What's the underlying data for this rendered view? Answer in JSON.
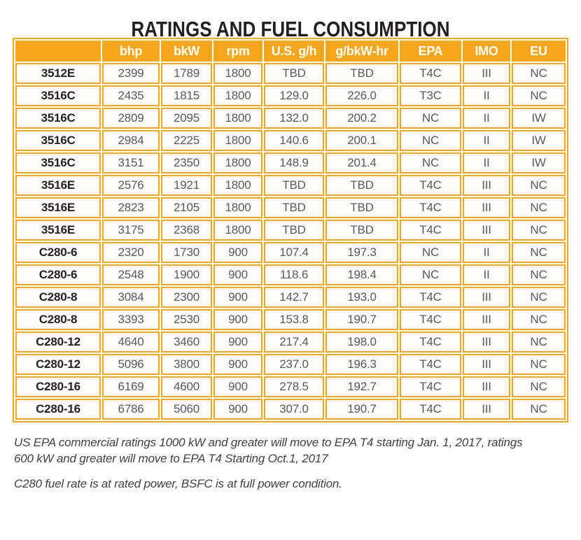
{
  "title": "RATINGS AND FUEL CONSUMPTION",
  "colors": {
    "amber": "#F4A71D",
    "header_text": "#FFFFFF",
    "model_text": "#231F20",
    "value_text": "#58595B",
    "footnote_text": "#414042"
  },
  "table": {
    "columns": [
      "",
      "bhp",
      "bkW",
      "rpm",
      "U.S. g/h",
      "g/bkW-hr",
      "EPA",
      "IMO",
      "EU"
    ],
    "rows": [
      [
        "3512E",
        "2399",
        "1789",
        "1800",
        "TBD",
        "TBD",
        "T4C",
        "III",
        "NC"
      ],
      [
        "3516C",
        "2435",
        "1815",
        "1800",
        "129.0",
        "226.0",
        "T3C",
        "II",
        "NC"
      ],
      [
        "3516C",
        "2809",
        "2095",
        "1800",
        "132.0",
        "200.2",
        "NC",
        "II",
        "IW"
      ],
      [
        "3516C",
        "2984",
        "2225",
        "1800",
        "140.6",
        "200.1",
        "NC",
        "II",
        "IW"
      ],
      [
        "3516C",
        "3151",
        "2350",
        "1800",
        "148.9",
        "201.4",
        "NC",
        "II",
        "IW"
      ],
      [
        "3516E",
        "2576",
        "1921",
        "1800",
        "TBD",
        "TBD",
        "T4C",
        "III",
        "NC"
      ],
      [
        "3516E",
        "2823",
        "2105",
        "1800",
        "TBD",
        "TBD",
        "T4C",
        "III",
        "NC"
      ],
      [
        "3516E",
        "3175",
        "2368",
        "1800",
        "TBD",
        "TBD",
        "T4C",
        "III",
        "NC"
      ],
      [
        "C280-6",
        "2320",
        "1730",
        "900",
        "107.4",
        "197.3",
        "NC",
        "II",
        "NC"
      ],
      [
        "C280-6",
        "2548",
        "1900",
        "900",
        "118.6",
        "198.4",
        "NC",
        "II",
        "NC"
      ],
      [
        "C280-8",
        "3084",
        "2300",
        "900",
        "142.7",
        "193.0",
        "T4C",
        "III",
        "NC"
      ],
      [
        "C280-8",
        "3393",
        "2530",
        "900",
        "153.8",
        "190.7",
        "T4C",
        "III",
        "NC"
      ],
      [
        "C280-12",
        "4640",
        "3460",
        "900",
        "217.4",
        "198.0",
        "T4C",
        "III",
        "NC"
      ],
      [
        "C280-12",
        "5096",
        "3800",
        "900",
        "237.0",
        "196.3",
        "T4C",
        "III",
        "NC"
      ],
      [
        "C280-16",
        "6169",
        "4600",
        "900",
        "278.5",
        "192.7",
        "T4C",
        "III",
        "NC"
      ],
      [
        "C280-16",
        "6786",
        "5060",
        "900",
        "307.0",
        "190.7",
        "T4C",
        "III",
        "NC"
      ]
    ]
  },
  "footnotes": {
    "epa_line1": "US EPA commercial ratings 1000 kW and greater will move to EPA T4 starting Jan. 1, 2017, ratings",
    "epa_line2": "600 kW and greater will move to EPA T4 Starting Oct.1, 2017",
    "c280": "C280 fuel rate is at rated power, BSFC is at full power condition."
  }
}
